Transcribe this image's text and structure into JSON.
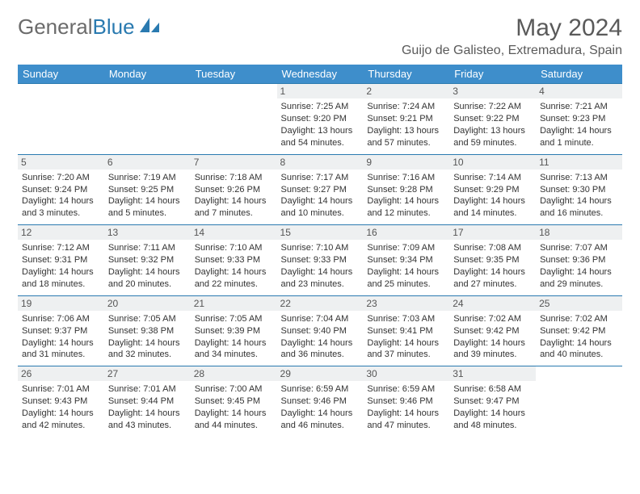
{
  "brand": {
    "name1": "General",
    "name2": "Blue"
  },
  "title": "May 2024",
  "location": "Guijo de Galisteo, Extremadura, Spain",
  "colors": {
    "header_bg": "#3e8ecb",
    "border": "#2a7ab0",
    "daynum_bg": "#eef0f1",
    "text": "#333333"
  },
  "weekdays": [
    "Sunday",
    "Monday",
    "Tuesday",
    "Wednesday",
    "Thursday",
    "Friday",
    "Saturday"
  ],
  "first_weekday_index": 3,
  "days": [
    {
      "n": 1,
      "sr": "7:25 AM",
      "ss": "9:20 PM",
      "dl": "13 hours and 54 minutes."
    },
    {
      "n": 2,
      "sr": "7:24 AM",
      "ss": "9:21 PM",
      "dl": "13 hours and 57 minutes."
    },
    {
      "n": 3,
      "sr": "7:22 AM",
      "ss": "9:22 PM",
      "dl": "13 hours and 59 minutes."
    },
    {
      "n": 4,
      "sr": "7:21 AM",
      "ss": "9:23 PM",
      "dl": "14 hours and 1 minute."
    },
    {
      "n": 5,
      "sr": "7:20 AM",
      "ss": "9:24 PM",
      "dl": "14 hours and 3 minutes."
    },
    {
      "n": 6,
      "sr": "7:19 AM",
      "ss": "9:25 PM",
      "dl": "14 hours and 5 minutes."
    },
    {
      "n": 7,
      "sr": "7:18 AM",
      "ss": "9:26 PM",
      "dl": "14 hours and 7 minutes."
    },
    {
      "n": 8,
      "sr": "7:17 AM",
      "ss": "9:27 PM",
      "dl": "14 hours and 10 minutes."
    },
    {
      "n": 9,
      "sr": "7:16 AM",
      "ss": "9:28 PM",
      "dl": "14 hours and 12 minutes."
    },
    {
      "n": 10,
      "sr": "7:14 AM",
      "ss": "9:29 PM",
      "dl": "14 hours and 14 minutes."
    },
    {
      "n": 11,
      "sr": "7:13 AM",
      "ss": "9:30 PM",
      "dl": "14 hours and 16 minutes."
    },
    {
      "n": 12,
      "sr": "7:12 AM",
      "ss": "9:31 PM",
      "dl": "14 hours and 18 minutes."
    },
    {
      "n": 13,
      "sr": "7:11 AM",
      "ss": "9:32 PM",
      "dl": "14 hours and 20 minutes."
    },
    {
      "n": 14,
      "sr": "7:10 AM",
      "ss": "9:33 PM",
      "dl": "14 hours and 22 minutes."
    },
    {
      "n": 15,
      "sr": "7:10 AM",
      "ss": "9:33 PM",
      "dl": "14 hours and 23 minutes."
    },
    {
      "n": 16,
      "sr": "7:09 AM",
      "ss": "9:34 PM",
      "dl": "14 hours and 25 minutes."
    },
    {
      "n": 17,
      "sr": "7:08 AM",
      "ss": "9:35 PM",
      "dl": "14 hours and 27 minutes."
    },
    {
      "n": 18,
      "sr": "7:07 AM",
      "ss": "9:36 PM",
      "dl": "14 hours and 29 minutes."
    },
    {
      "n": 19,
      "sr": "7:06 AM",
      "ss": "9:37 PM",
      "dl": "14 hours and 31 minutes."
    },
    {
      "n": 20,
      "sr": "7:05 AM",
      "ss": "9:38 PM",
      "dl": "14 hours and 32 minutes."
    },
    {
      "n": 21,
      "sr": "7:05 AM",
      "ss": "9:39 PM",
      "dl": "14 hours and 34 minutes."
    },
    {
      "n": 22,
      "sr": "7:04 AM",
      "ss": "9:40 PM",
      "dl": "14 hours and 36 minutes."
    },
    {
      "n": 23,
      "sr": "7:03 AM",
      "ss": "9:41 PM",
      "dl": "14 hours and 37 minutes."
    },
    {
      "n": 24,
      "sr": "7:02 AM",
      "ss": "9:42 PM",
      "dl": "14 hours and 39 minutes."
    },
    {
      "n": 25,
      "sr": "7:02 AM",
      "ss": "9:42 PM",
      "dl": "14 hours and 40 minutes."
    },
    {
      "n": 26,
      "sr": "7:01 AM",
      "ss": "9:43 PM",
      "dl": "14 hours and 42 minutes."
    },
    {
      "n": 27,
      "sr": "7:01 AM",
      "ss": "9:44 PM",
      "dl": "14 hours and 43 minutes."
    },
    {
      "n": 28,
      "sr": "7:00 AM",
      "ss": "9:45 PM",
      "dl": "14 hours and 44 minutes."
    },
    {
      "n": 29,
      "sr": "6:59 AM",
      "ss": "9:46 PM",
      "dl": "14 hours and 46 minutes."
    },
    {
      "n": 30,
      "sr": "6:59 AM",
      "ss": "9:46 PM",
      "dl": "14 hours and 47 minutes."
    },
    {
      "n": 31,
      "sr": "6:58 AM",
      "ss": "9:47 PM",
      "dl": "14 hours and 48 minutes."
    }
  ],
  "labels": {
    "sunrise": "Sunrise:",
    "sunset": "Sunset:",
    "daylight": "Daylight:"
  }
}
